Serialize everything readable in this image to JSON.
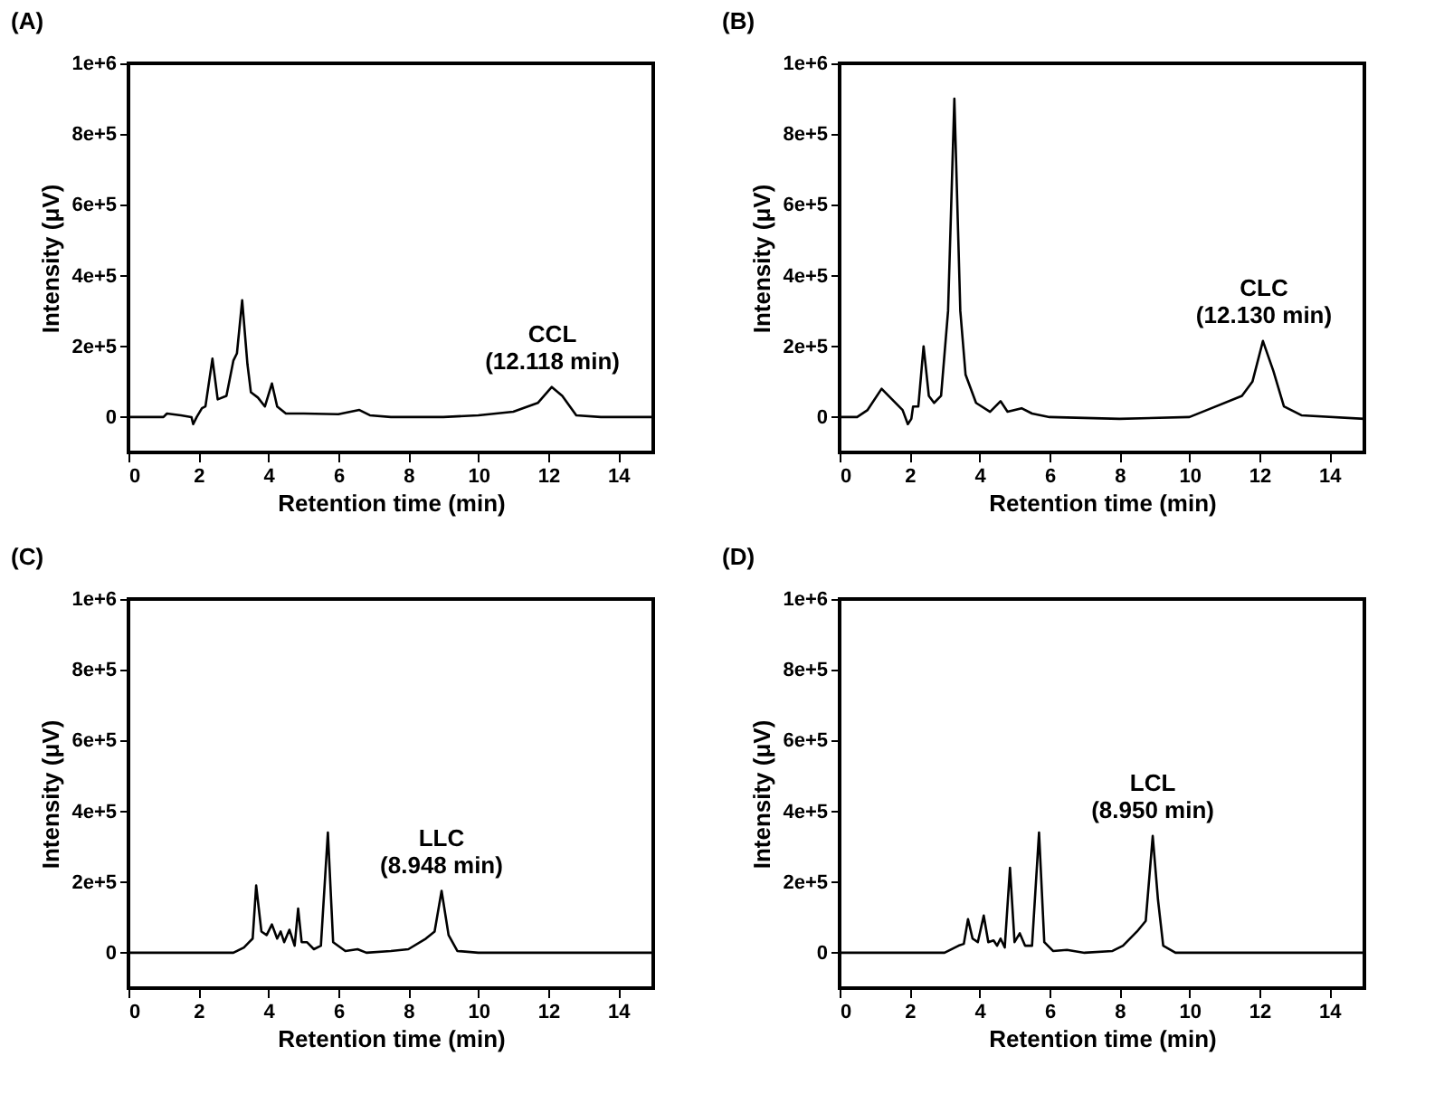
{
  "chart_data": [
    {
      "type": "line",
      "title": "(A)",
      "xlabel": "Retention time (min)",
      "ylabel": "Intensity (μV)",
      "color": "#000000",
      "x": [
        0,
        1.0,
        1.1,
        1.5,
        1.8,
        1.85,
        1.95,
        2.1,
        2.2,
        2.4,
        2.55,
        2.8,
        3.0,
        3.1,
        3.25,
        3.4,
        3.5,
        3.7,
        3.9,
        4.1,
        4.25,
        4.5,
        5,
        6,
        6.6,
        6.9,
        7.5,
        9,
        10,
        11,
        11.7,
        12.1,
        12.4,
        12.8,
        13.5,
        15
      ],
      "values": [
        0,
        0,
        10000,
        5000,
        0,
        -20000,
        0,
        25000,
        30000,
        165000,
        50000,
        60000,
        160000,
        180000,
        330000,
        150000,
        70000,
        55000,
        30000,
        95000,
        30000,
        10000,
        10000,
        8000,
        20000,
        5000,
        0,
        0,
        5000,
        15000,
        40000,
        85000,
        60000,
        5000,
        0,
        0
      ],
      "xlim": [
        0,
        15
      ],
      "xticks": [
        0,
        2,
        4,
        6,
        8,
        10,
        12,
        14
      ],
      "ylim": [
        -100000,
        1000000
      ],
      "yticks": [
        {
          "value": 0,
          "label": "0"
        },
        {
          "value": 200000,
          "label": "2e+5"
        },
        {
          "value": 400000,
          "label": "4e+5"
        },
        {
          "value": 600000,
          "label": "6e+5"
        },
        {
          "value": 800000,
          "label": "8e+5"
        },
        {
          "value": 1000000,
          "label": "1e+6"
        }
      ],
      "annotations": [
        {
          "text": "CCL\n(12.118 min)",
          "x": 12.118,
          "y": 85000
        }
      ]
    },
    {
      "type": "line",
      "title": "(B)",
      "xlabel": "Retention time (min)",
      "ylabel": "Intensity (μV)",
      "color": "#000000",
      "x": [
        0,
        0.5,
        0.8,
        1.2,
        1.5,
        1.8,
        1.95,
        2.05,
        2.1,
        2.25,
        2.4,
        2.55,
        2.7,
        2.9,
        3.1,
        3.28,
        3.45,
        3.6,
        3.9,
        4.3,
        4.6,
        4.8,
        5.2,
        5.5,
        6,
        8,
        10,
        10.5,
        11.5,
        11.8,
        12.1,
        12.4,
        12.7,
        13.2,
        15
      ],
      "values": [
        0,
        0,
        20000,
        80000,
        50000,
        20000,
        -20000,
        -5000,
        30000,
        30000,
        200000,
        60000,
        40000,
        60000,
        300000,
        900000,
        300000,
        120000,
        40000,
        15000,
        45000,
        15000,
        25000,
        10000,
        0,
        -5000,
        0,
        20000,
        60000,
        100000,
        215000,
        130000,
        30000,
        5000,
        -5000
      ],
      "xlim": [
        0,
        15
      ],
      "xticks": [
        0,
        2,
        4,
        6,
        8,
        10,
        12,
        14
      ],
      "ylim": [
        -100000,
        1000000
      ],
      "yticks": [
        {
          "value": 0,
          "label": "0"
        },
        {
          "value": 200000,
          "label": "2e+5"
        },
        {
          "value": 400000,
          "label": "4e+5"
        },
        {
          "value": 600000,
          "label": "6e+5"
        },
        {
          "value": 800000,
          "label": "8e+5"
        },
        {
          "value": 1000000,
          "label": "1e+6"
        }
      ],
      "annotations": [
        {
          "text": "CLC\n(12.130 min)",
          "x": 12.13,
          "y": 215000
        }
      ]
    },
    {
      "type": "line",
      "title": "(C)",
      "xlabel": "Retention time (min)",
      "ylabel": "Intensity (μV)",
      "color": "#000000",
      "x": [
        0,
        3,
        3.3,
        3.45,
        3.55,
        3.65,
        3.8,
        3.95,
        4.1,
        4.25,
        4.35,
        4.45,
        4.6,
        4.75,
        4.85,
        4.95,
        5.1,
        5.3,
        5.5,
        5.7,
        5.85,
        6.2,
        6.55,
        6.8,
        7.5,
        8,
        8.5,
        8.75,
        8.95,
        9.15,
        9.4,
        10,
        15
      ],
      "values": [
        0,
        0,
        15000,
        30000,
        40000,
        190000,
        60000,
        50000,
        80000,
        40000,
        60000,
        30000,
        65000,
        20000,
        125000,
        30000,
        30000,
        10000,
        20000,
        340000,
        30000,
        5000,
        10000,
        0,
        5000,
        10000,
        40000,
        60000,
        175000,
        50000,
        5000,
        0,
        0
      ],
      "xlim": [
        0,
        15
      ],
      "xticks": [
        0,
        2,
        4,
        6,
        8,
        10,
        12,
        14
      ],
      "ylim": [
        -100000,
        1000000
      ],
      "yticks": [
        {
          "value": 0,
          "label": "0"
        },
        {
          "value": 200000,
          "label": "2e+5"
        },
        {
          "value": 400000,
          "label": "4e+5"
        },
        {
          "value": 600000,
          "label": "6e+5"
        },
        {
          "value": 800000,
          "label": "8e+5"
        },
        {
          "value": 1000000,
          "label": "1e+6"
        }
      ],
      "annotations": [
        {
          "text": "LLC\n(8.948 min)",
          "x": 8.948,
          "y": 175000
        }
      ]
    },
    {
      "type": "line",
      "title": "(D)",
      "xlabel": "Retention time (min)",
      "ylabel": "Intensity (μV)",
      "color": "#000000",
      "x": [
        0,
        3,
        3.4,
        3.55,
        3.67,
        3.8,
        3.95,
        4.12,
        4.25,
        4.4,
        4.5,
        4.6,
        4.72,
        4.87,
        5.0,
        5.15,
        5.3,
        5.5,
        5.7,
        5.85,
        6.1,
        6.5,
        7,
        7.8,
        8.1,
        8.5,
        8.75,
        8.95,
        9.1,
        9.25,
        9.6,
        15
      ],
      "values": [
        0,
        0,
        20000,
        25000,
        95000,
        40000,
        30000,
        105000,
        30000,
        35000,
        20000,
        40000,
        15000,
        240000,
        30000,
        55000,
        20000,
        20000,
        340000,
        30000,
        5000,
        8000,
        0,
        5000,
        20000,
        60000,
        90000,
        330000,
        150000,
        20000,
        0,
        0
      ],
      "xlim": [
        0,
        15
      ],
      "xticks": [
        0,
        2,
        4,
        6,
        8,
        10,
        12,
        14
      ],
      "ylim": [
        -100000,
        1000000
      ],
      "yticks": [
        {
          "value": 0,
          "label": "0"
        },
        {
          "value": 200000,
          "label": "2e+5"
        },
        {
          "value": 400000,
          "label": "4e+5"
        },
        {
          "value": 600000,
          "label": "6e+5"
        },
        {
          "value": 800000,
          "label": "8e+5"
        },
        {
          "value": 1000000,
          "label": "1e+6"
        }
      ],
      "annotations": [
        {
          "text": "LCL\n(8.950 min)",
          "x": 8.95,
          "y": 330000
        }
      ]
    }
  ]
}
